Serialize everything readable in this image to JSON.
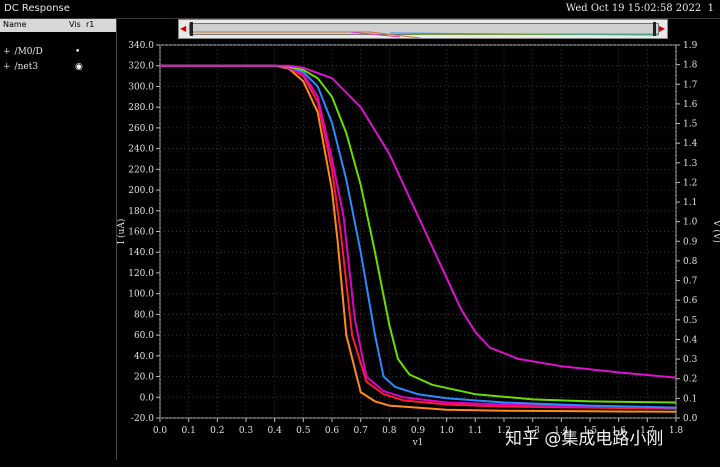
{
  "window": {
    "title": "DC Response",
    "timestamp": "Wed Oct 19 15:02:58 2022",
    "page_index": "1"
  },
  "signal_panel": {
    "headers": {
      "name": "Name",
      "vis": "Vis",
      "r": "r1"
    },
    "signals": [
      {
        "expander": "+",
        "name": "/M0/D",
        "vis": "•"
      },
      {
        "expander": "+",
        "name": "/net3",
        "vis": "◉"
      }
    ]
  },
  "watermark": "知乎 @集成电路小刚",
  "chart_data": {
    "type": "line",
    "title": "",
    "xlabel": "v1",
    "ylabel": "I (uA)",
    "y2label": "V (V)",
    "xlim": [
      0.0,
      1.8
    ],
    "ylim": [
      -20.0,
      340.0
    ],
    "y2lim": [
      0.0,
      1.9
    ],
    "xticks": [
      "0.0",
      "0.1",
      "0.2",
      "0.3",
      "0.4",
      "0.5",
      "0.6",
      "0.7",
      "0.8",
      "0.9",
      "1.0",
      "1.1",
      "1.2",
      "1.3",
      "1.4",
      "1.5",
      "1.6",
      "1.7",
      "1.8"
    ],
    "yticks": [
      "-20.0",
      "0.0",
      "20.0",
      "40.0",
      "60.0",
      "80.0",
      "100.0",
      "120.0",
      "140.0",
      "160.0",
      "180.0",
      "200.0",
      "220.0",
      "240.0",
      "260.0",
      "280.0",
      "300.0",
      "320.0",
      "340.0"
    ],
    "y2ticks": [
      "0.0",
      "0.1",
      "0.2",
      "0.3",
      "0.4",
      "0.5",
      "0.6",
      "0.7",
      "0.8",
      "0.9",
      "1.0",
      "1.1",
      "1.2",
      "1.3",
      "1.4",
      "1.5",
      "1.6",
      "1.7",
      "1.8",
      "1.9"
    ],
    "grid": true,
    "series": [
      {
        "color": "#ff8c1a",
        "x": [
          0,
          0.4,
          0.45,
          0.5,
          0.55,
          0.6,
          0.62,
          0.65,
          0.7,
          0.75,
          0.8,
          1.0,
          1.2,
          1.5,
          1.8
        ],
        "y": [
          320,
          320,
          317,
          305,
          275,
          200,
          150,
          60,
          5,
          -4,
          -8,
          -12,
          -13,
          -13.5,
          -14
        ]
      },
      {
        "color": "#ff1a3a",
        "x": [
          0,
          0.4,
          0.45,
          0.5,
          0.55,
          0.6,
          0.63,
          0.67,
          0.72,
          0.78,
          0.85,
          1.0,
          1.2,
          1.5,
          1.8
        ],
        "y": [
          320,
          320,
          318,
          310,
          285,
          220,
          160,
          60,
          15,
          3,
          -3,
          -7,
          -9,
          -10,
          -11
        ]
      },
      {
        "color": "#e000c8",
        "x": [
          0,
          0.4,
          0.45,
          0.5,
          0.55,
          0.6,
          0.64,
          0.68,
          0.72,
          0.78,
          0.85,
          1.0,
          1.2,
          1.5,
          1.8
        ],
        "y": [
          320,
          320,
          318,
          312,
          290,
          230,
          175,
          75,
          20,
          6,
          0,
          -5,
          -7,
          -9,
          -10
        ]
      },
      {
        "color": "#2a8cff",
        "x": [
          0,
          0.4,
          0.45,
          0.5,
          0.55,
          0.6,
          0.65,
          0.7,
          0.75,
          0.78,
          0.82,
          0.9,
          1.0,
          1.2,
          1.5,
          1.8
        ],
        "y": [
          320,
          320,
          319,
          314,
          300,
          265,
          210,
          140,
          60,
          20,
          10,
          3,
          -1,
          -5,
          -8,
          -10
        ]
      },
      {
        "color": "#66e000",
        "x": [
          0,
          0.4,
          0.45,
          0.5,
          0.55,
          0.6,
          0.65,
          0.7,
          0.75,
          0.8,
          0.83,
          0.87,
          0.95,
          1.1,
          1.3,
          1.5,
          1.8
        ],
        "y": [
          320,
          320,
          319,
          316,
          308,
          290,
          255,
          205,
          140,
          70,
          37,
          22,
          12,
          3,
          -2,
          -4,
          -5
        ]
      },
      {
        "color": "#e010d0",
        "x": [
          0,
          0.4,
          0.45,
          0.5,
          0.6,
          0.7,
          0.8,
          0.9,
          1.0,
          1.05,
          1.1,
          1.15,
          1.25,
          1.4,
          1.6,
          1.8
        ],
        "y": [
          320,
          320,
          320,
          318,
          308,
          280,
          235,
          175,
          115,
          85,
          63,
          48,
          37,
          30,
          24,
          19
        ]
      }
    ]
  }
}
